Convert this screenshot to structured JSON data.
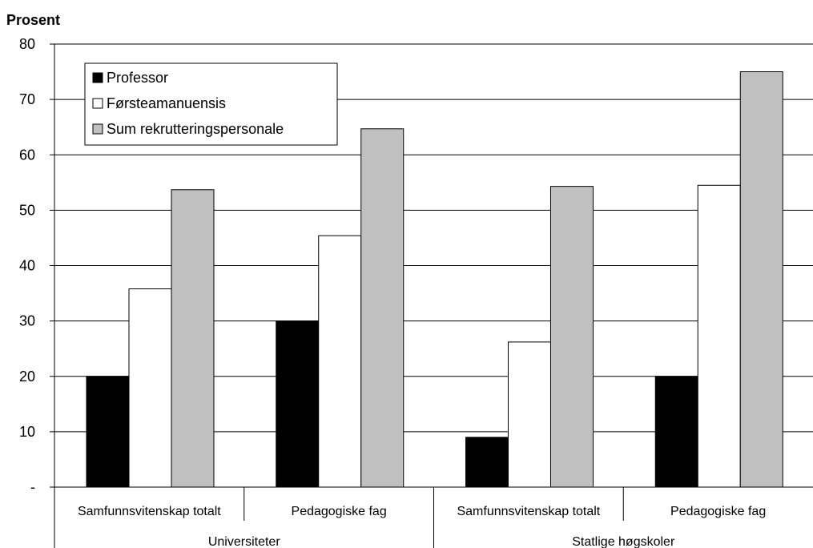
{
  "chart_data": {
    "type": "bar",
    "ylabel": "Prosent",
    "ylim": [
      0,
      80
    ],
    "yticks": [
      0,
      10,
      20,
      30,
      40,
      50,
      60,
      70,
      80
    ],
    "yticklabels": [
      "-",
      "10",
      "20",
      "30",
      "40",
      "50",
      "60",
      "70",
      "80"
    ],
    "grid": true,
    "legend_position": "top-left",
    "categories": [
      "Samfunnsvitenskap totalt",
      "Pedagogiske fag",
      "Samfunnsvitenskap totalt",
      "Pedagogiske fag"
    ],
    "groups": [
      {
        "label": "Universiteter",
        "categories": [
          0,
          1
        ]
      },
      {
        "label": "Statlige høgskoler",
        "categories": [
          2,
          3
        ]
      }
    ],
    "series": [
      {
        "name": "Professor",
        "color": "#000000",
        "values": [
          20,
          30,
          9,
          20
        ]
      },
      {
        "name": "Førsteamanuensis",
        "color": "#ffffff",
        "values": [
          35.8,
          45.4,
          26.2,
          54.5
        ]
      },
      {
        "name": "Sum rekrutteringspersonale",
        "color": "#c0c0c0",
        "values": [
          53.7,
          64.7,
          54.3,
          75
        ]
      }
    ]
  }
}
